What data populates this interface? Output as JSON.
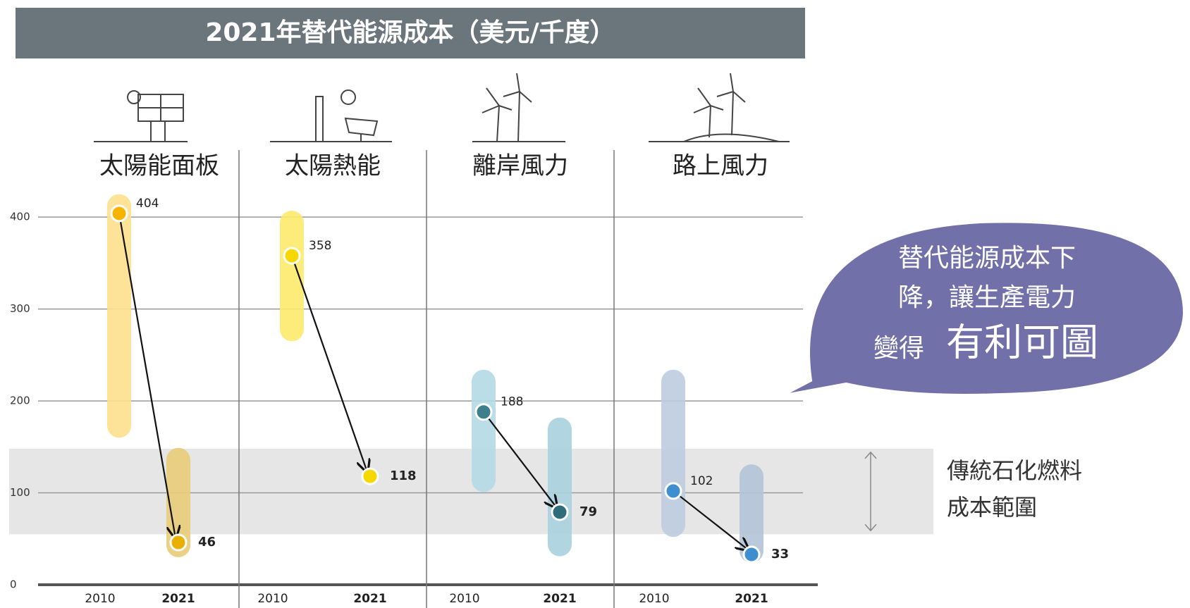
{
  "chart_data": {
    "type": "range_dot",
    "title": "2021年替代能源成本（美元/千度）",
    "ylim": [
      0,
      440
    ],
    "yticks": [
      0,
      100,
      200,
      300,
      400
    ],
    "series": [
      {
        "name": "太陽能面板",
        "categories": [
          "2010",
          "2021"
        ],
        "values": [
          404,
          46
        ],
        "ranges": [
          [
            160,
            425
          ],
          [
            30,
            149
          ]
        ],
        "bar_colors": [
          "#fde08c",
          "#e9cc78"
        ],
        "dot_colors": [
          "#f4b400",
          "#e8b000"
        ]
      },
      {
        "name": "太陽熱能",
        "categories": [
          "2010",
          "2021"
        ],
        "values": [
          358,
          118
        ],
        "ranges": [
          [
            265,
            407
          ],
          null
        ],
        "bar_colors": [
          "#fde96c",
          "#fde96c"
        ],
        "dot_colors": [
          "#f6d800",
          "#f6d800"
        ]
      },
      {
        "name": "離岸風力",
        "categories": [
          "2010",
          "2021"
        ],
        "values": [
          188,
          79
        ],
        "ranges": [
          [
            101,
            234
          ],
          [
            31,
            182
          ]
        ],
        "bar_colors": [
          "#b4d9e4",
          "#a9d0de"
        ],
        "dot_colors": [
          "#3e7f8c",
          "#2f6d7b"
        ]
      },
      {
        "name": "路上風力",
        "categories": [
          "2010",
          "2021"
        ],
        "values": [
          102,
          33
        ],
        "ranges": [
          [
            52,
            234
          ],
          [
            24,
            131
          ]
        ],
        "bar_colors": [
          "#bccce0",
          "#b2c4d8"
        ],
        "dot_colors": [
          "#3f8fd0",
          "#3f8fd0"
        ]
      }
    ],
    "fossil_range": {
      "label": [
        "傳統石化燃料",
        "成本範圍"
      ],
      "range": [
        55,
        148
      ]
    },
    "callout": [
      "替代能源成本下",
      "降，讓生產電力",
      "變得",
      "有利可圖"
    ]
  }
}
